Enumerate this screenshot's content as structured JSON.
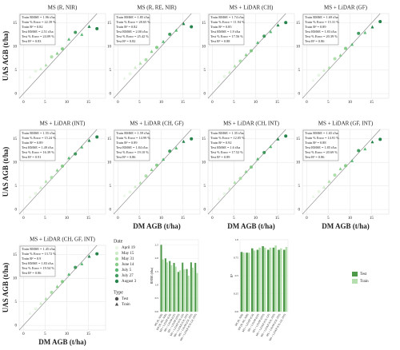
{
  "chart_data": [
    {
      "type": "scatter",
      "title": "MS (R, NIR)",
      "ylabel": "UAS AGB (t/ha)",
      "stats": [
        "Train RMSE = 1.96 t/ha",
        "Train % Error = 22.39 %",
        "Train R² = 0.82",
        "Test RMSE = 2.51 t/ha",
        "Test % Error = 24.09 %",
        "Test R² = 0.83"
      ],
      "x": [
        1.5,
        2.8,
        4,
        5.2,
        6.5,
        7.8,
        9,
        10.5,
        12,
        13.5,
        15.2,
        17
      ],
      "y": [
        3.5,
        4.8,
        5.2,
        6,
        7.8,
        8.5,
        9.5,
        11.5,
        13,
        12.5,
        14.2,
        13.8
      ],
      "date": [
        "April 19",
        "April 19",
        "May 15",
        "May 31",
        "May 31",
        "June 14",
        "June 14",
        "July 5",
        "July 27",
        "July 5",
        "August 3",
        "August 3"
      ],
      "split": [
        "Train",
        "Test",
        "Train",
        "Train",
        "Test",
        "Train",
        "Test",
        "Train",
        "Test",
        "Train",
        "Train",
        "Test"
      ],
      "xlim": [
        -1,
        19
      ],
      "ylim": [
        -1,
        17
      ],
      "xticks": [
        0,
        5,
        10,
        15
      ],
      "yticks": [
        0,
        5,
        10,
        15
      ]
    },
    {
      "type": "scatter",
      "title": "MS (R, RE, NIR)",
      "stats": [
        "Train RMSE = 1.85 t/ha",
        "Train % Error = 28.65 %",
        "Train R² = 0.82",
        "Test RMSE = 2.00 t/ha",
        "Test % Error = 25.42 %",
        "Test R² = 0.82"
      ],
      "x": [
        1.5,
        2.8,
        4,
        5.2,
        6.5,
        7.8,
        9,
        10.5,
        12,
        13.5,
        15.2,
        17
      ],
      "y": [
        3.2,
        4.2,
        5.5,
        6.4,
        7.2,
        8.9,
        9.8,
        11,
        12.6,
        13.4,
        14.8,
        14.2
      ],
      "date": [
        "April 19",
        "April 19",
        "May 15",
        "May 31",
        "May 31",
        "June 14",
        "June 14",
        "July 5",
        "July 27",
        "July 5",
        "August 3",
        "August 3"
      ],
      "split": [
        "Train",
        "Test",
        "Train",
        "Train",
        "Test",
        "Train",
        "Test",
        "Train",
        "Test",
        "Train",
        "Train",
        "Test"
      ],
      "xlim": [
        -1,
        19
      ],
      "ylim": [
        -1,
        17
      ],
      "xticks": [
        0,
        5,
        10,
        15
      ],
      "yticks": [
        0,
        5,
        10,
        15
      ]
    },
    {
      "type": "scatter",
      "title": "MS + LiDAR (CH)",
      "stats": [
        "Train RMSE = 1.74 t/ha",
        "Train % Error = 11.94 %",
        "Train R² = 0.85",
        "Test RMSE = 1.9 t/ha",
        "Test % Error = 17.56 %",
        "Test R² = 0.88"
      ],
      "x": [
        1.5,
        2.8,
        4,
        5.2,
        6.5,
        7.8,
        9,
        10.5,
        12,
        13.5,
        15.2,
        17
      ],
      "y": [
        2.4,
        3.6,
        4.5,
        5.8,
        6.9,
        8.2,
        9.1,
        10.8,
        12.2,
        13.1,
        14.5,
        15.1
      ],
      "date": [
        "April 19",
        "April 19",
        "May 15",
        "May 31",
        "May 31",
        "June 14",
        "June 14",
        "July 5",
        "July 27",
        "July 5",
        "August 3",
        "August 3"
      ],
      "split": [
        "Train",
        "Test",
        "Train",
        "Train",
        "Test",
        "Train",
        "Test",
        "Train",
        "Test",
        "Train",
        "Train",
        "Test"
      ],
      "xlim": [
        -1,
        19
      ],
      "ylim": [
        -1,
        17
      ],
      "xticks": [
        0,
        5,
        10,
        15
      ],
      "yticks": [
        0,
        5,
        10,
        15
      ]
    },
    {
      "type": "scatter",
      "title": "MS + LiDAR (GF)",
      "stats": [
        "Train RMSE = 1.69 t/ha",
        "Train % Error = 15.31 %",
        "Train R² = 0.89",
        "Test RMSE = 1.83 t/ha",
        "Test % Error = 20.39 %",
        "Test R² = 0.86"
      ],
      "x": [
        1.5,
        2.8,
        4,
        5.2,
        6.5,
        7.8,
        9,
        10.5,
        12,
        13.5,
        15.2,
        17
      ],
      "y": [
        2.8,
        3.9,
        4.9,
        5.5,
        7.4,
        8.1,
        9.6,
        10.4,
        12.8,
        12.9,
        14.1,
        15.3
      ],
      "date": [
        "April 19",
        "April 19",
        "May 15",
        "May 31",
        "May 31",
        "June 14",
        "June 14",
        "July 5",
        "July 27",
        "July 5",
        "August 3",
        "August 3"
      ],
      "split": [
        "Train",
        "Test",
        "Train",
        "Train",
        "Test",
        "Train",
        "Test",
        "Train",
        "Test",
        "Train",
        "Train",
        "Test"
      ],
      "xlim": [
        -1,
        19
      ],
      "ylim": [
        -1,
        17
      ],
      "xticks": [
        0,
        5,
        10,
        15
      ],
      "yticks": [
        0,
        5,
        10,
        15
      ]
    },
    {
      "type": "scatter",
      "title": "MS + LiDAR (INT)",
      "ylabel": "UAS AGB (t/ha)",
      "stats": [
        "Train RMSE = 1.55 t/ha",
        "Train % Error = 15.24 %",
        "Train R² = 0.89",
        "Test RMSE = 1.49 t/ha",
        "Test % Error = 16.39 %",
        "Test R² = 0.91"
      ],
      "x": [
        1.5,
        2.8,
        4,
        5.2,
        6.5,
        7.8,
        9,
        10.5,
        12,
        13.5,
        15.2,
        17
      ],
      "y": [
        2.6,
        3.4,
        4.6,
        5.9,
        6.8,
        8.3,
        9.2,
        10.9,
        11.8,
        13.2,
        14.6,
        15.4
      ],
      "date": [
        "April 19",
        "April 19",
        "May 15",
        "May 31",
        "May 31",
        "June 14",
        "June 14",
        "July 5",
        "July 27",
        "July 5",
        "August 3",
        "August 3"
      ],
      "split": [
        "Train",
        "Test",
        "Train",
        "Train",
        "Test",
        "Train",
        "Test",
        "Train",
        "Test",
        "Train",
        "Train",
        "Test"
      ],
      "xlim": [
        -1,
        19
      ],
      "ylim": [
        -1,
        17
      ],
      "xticks": [
        0,
        5,
        10,
        15
      ],
      "yticks": [
        0,
        5,
        10,
        15
      ]
    },
    {
      "type": "scatter",
      "title": "MS + LiDAR (CH, GF)",
      "xlabel": "DM AGB (t/ha)",
      "stats": [
        "Train RMSE = 1.59 t/ha",
        "Train % Error = 14.99 %",
        "Train R² = 0.89",
        "Test RMSE = 1.84 t/ha",
        "Test % Error = 19.10 %",
        "Test R² = 0.86"
      ],
      "x": [
        1.5,
        2.8,
        4,
        5.2,
        6.5,
        7.8,
        9,
        10.5,
        12,
        13.5,
        15.2,
        17
      ],
      "y": [
        2.9,
        3.7,
        4.8,
        5.6,
        7.1,
        8.4,
        9.4,
        10.6,
        12.4,
        13,
        14.4,
        15
      ],
      "date": [
        "April 19",
        "April 19",
        "May 15",
        "May 31",
        "May 31",
        "June 14",
        "June 14",
        "July 5",
        "July 27",
        "July 5",
        "August 3",
        "August 3"
      ],
      "split": [
        "Train",
        "Test",
        "Train",
        "Train",
        "Test",
        "Train",
        "Test",
        "Train",
        "Test",
        "Train",
        "Train",
        "Test"
      ],
      "xlim": [
        -1,
        19
      ],
      "ylim": [
        -1,
        17
      ],
      "xticks": [
        0,
        5,
        10,
        15
      ],
      "yticks": [
        0,
        5,
        10,
        15
      ]
    },
    {
      "type": "scatter",
      "title": "MS + LiDAR (CH, INT)",
      "xlabel": "DM AGB (t/ha)",
      "stats": [
        "Train RMSE = 1.35 t/ha",
        "Train % Error = 12.05 %",
        "Train R² = 0.92",
        "Test RMSE = 1.6 t/ha",
        "Test % Error = 17.52 %",
        "Test R² = 0.89"
      ],
      "x": [
        1.5,
        2.8,
        4,
        5.2,
        6.5,
        7.8,
        9,
        10.5,
        12,
        13.5,
        15.2,
        17
      ],
      "y": [
        2.2,
        3.3,
        4.4,
        5.7,
        6.6,
        8,
        9,
        10.7,
        12.1,
        13.3,
        14.9,
        15.6
      ],
      "date": [
        "April 19",
        "April 19",
        "May 15",
        "May 31",
        "May 31",
        "June 14",
        "June 14",
        "July 5",
        "July 27",
        "July 5",
        "August 3",
        "August 3"
      ],
      "split": [
        "Train",
        "Test",
        "Train",
        "Train",
        "Test",
        "Train",
        "Test",
        "Train",
        "Test",
        "Train",
        "Train",
        "Test"
      ],
      "xlim": [
        -1,
        19
      ],
      "ylim": [
        -1,
        17
      ],
      "xticks": [
        0,
        5,
        10,
        15
      ],
      "yticks": [
        0,
        5,
        10,
        15
      ]
    },
    {
      "type": "scatter",
      "title": "MS + LiDAR (GF, INT)",
      "xlabel": "DM AGB (t/ha)",
      "stats": [
        "Train RMSE = 1.65 t/ha",
        "Train % Error = 14.91 %",
        "Train R² = 0.88",
        "Test RMSE = 1.85 t/ha",
        "Test % Error = 20.69 %",
        "Test R² = 0.86"
      ],
      "x": [
        1.5,
        2.8,
        4,
        5.2,
        6.5,
        7.8,
        9,
        10.5,
        12,
        13.5,
        15.2,
        17
      ],
      "y": [
        2.7,
        3.8,
        4.7,
        5.9,
        7.3,
        8.6,
        9.3,
        10.3,
        12.5,
        12.8,
        14.3,
        14.9
      ],
      "date": [
        "April 19",
        "April 19",
        "May 15",
        "May 31",
        "May 31",
        "June 14",
        "June 14",
        "July 5",
        "July 27",
        "July 5",
        "August 3",
        "August 3"
      ],
      "split": [
        "Train",
        "Test",
        "Train",
        "Train",
        "Test",
        "Train",
        "Test",
        "Train",
        "Test",
        "Train",
        "Train",
        "Test"
      ],
      "xlim": [
        -1,
        19
      ],
      "ylim": [
        -1,
        17
      ],
      "xticks": [
        0,
        5,
        10,
        15
      ],
      "yticks": [
        0,
        5,
        10,
        15
      ]
    },
    {
      "type": "scatter",
      "title": "MS + LiDAR (CH, GF, INT)",
      "xlabel": "DM AGB (t/ha)",
      "ylabel": "UAS AGB (t/ha)",
      "stats": [
        "Train RMSE = 1.45 t/ha",
        "Train % Error = 13.72 %",
        "Train R² = 0.9",
        "Test RMSE = 1.83 t/ha",
        "Test % Error = 19.54 %",
        "Test R² = 0.86"
      ],
      "x": [
        1.5,
        2.8,
        4,
        5.2,
        6.5,
        7.8,
        9,
        10.5,
        12,
        13.5,
        15.2,
        17
      ],
      "y": [
        2.5,
        3.5,
        4.6,
        5.6,
        7,
        8.2,
        9.3,
        10.8,
        12.3,
        13,
        14.6,
        15.2
      ],
      "date": [
        "April 19",
        "April 19",
        "May 15",
        "May 31",
        "May 31",
        "June 14",
        "June 14",
        "July 5",
        "July 27",
        "July 5",
        "August 3",
        "August 3"
      ],
      "split": [
        "Train",
        "Test",
        "Train",
        "Train",
        "Test",
        "Train",
        "Test",
        "Train",
        "Test",
        "Train",
        "Train",
        "Test"
      ],
      "xlim": [
        -1,
        19
      ],
      "ylim": [
        -1,
        17
      ],
      "xticks": [
        0,
        5,
        10,
        15
      ],
      "yticks": [
        0,
        5,
        10,
        15
      ]
    },
    {
      "type": "bar",
      "ylabel": "RMSE (t/ha)",
      "categories": [
        "MS (R, NIR)",
        "MS (R, RE, NIR)",
        "MS + LiDAR (CH)",
        "MS + LiDAR (GF)",
        "MS + LiDAR (INT)",
        "MS + LiDAR (CH, GF)",
        "MS + LiDAR (CH, INT)",
        "MS + LiDAR (GF, INT)",
        "MS + LiDAR (CH, GF, INT)"
      ],
      "series": [
        {
          "name": "Test",
          "color": "#4e9a4a",
          "values": [
            2.51,
            2.0,
            1.9,
            1.83,
            1.49,
            1.84,
            1.6,
            1.85,
            1.83
          ]
        },
        {
          "name": "Train",
          "color": "#b5dfae",
          "values": [
            1.96,
            1.85,
            1.74,
            1.69,
            1.55,
            1.59,
            1.35,
            1.65,
            1.45
          ]
        }
      ],
      "ylim": [
        0,
        2.7
      ],
      "yticks": [
        {
          "value": 0,
          "label": "0.0"
        },
        {
          "value": 0.5,
          "label": "0.5"
        },
        {
          "value": 1,
          "label": "1.0"
        },
        {
          "value": 1.5,
          "label": "1.5"
        },
        {
          "value": 2,
          "label": "2.0"
        },
        {
          "value": 2.5,
          "label": "2.5"
        }
      ]
    },
    {
      "type": "bar",
      "ylabel": "R²",
      "categories": [
        "MS (R, NIR)",
        "MS (R, RE, NIR)",
        "MS + LiDAR (CH)",
        "MS + LiDAR (GF)",
        "MS + LiDAR (INT)",
        "MS + LiDAR (CH, GF)",
        "MS + LiDAR (CH, INT)",
        "MS + LiDAR (GF, INT)",
        "MS + LiDAR (CH, GF, INT)"
      ],
      "series": [
        {
          "name": "Test",
          "color": "#4e9a4a",
          "values": [
            0.83,
            0.82,
            0.88,
            0.86,
            0.91,
            0.86,
            0.89,
            0.86,
            0.86
          ]
        },
        {
          "name": "Train",
          "color": "#b5dfae",
          "values": [
            0.82,
            0.82,
            0.85,
            0.89,
            0.89,
            0.89,
            0.92,
            0.88,
            0.9
          ]
        }
      ],
      "ylim": [
        0,
        1
      ],
      "yticks": [
        {
          "value": 0,
          "label": "0.0"
        },
        {
          "value": 0.25,
          "label": "0.25"
        },
        {
          "value": 0.5,
          "label": "0.5"
        },
        {
          "value": 0.75,
          "label": "0.75"
        },
        {
          "value": 1,
          "label": "1.0"
        }
      ]
    }
  ],
  "legend": {
    "date_title": "Date",
    "dates": [
      {
        "name": "April 19",
        "color": "#e5f5e0"
      },
      {
        "name": "May 15",
        "color": "#c7e9c0"
      },
      {
        "name": "May 31",
        "color": "#a1d99b"
      },
      {
        "name": "June 14",
        "color": "#74c476"
      },
      {
        "name": "July 5",
        "color": "#41ab5d"
      },
      {
        "name": "July 27",
        "color": "#238b45"
      },
      {
        "name": "August 3",
        "color": "#006d2c"
      }
    ],
    "type_title": "Type",
    "types": [
      {
        "name": "Test",
        "shape": "circle"
      },
      {
        "name": "Train",
        "shape": "triangle"
      }
    ]
  }
}
